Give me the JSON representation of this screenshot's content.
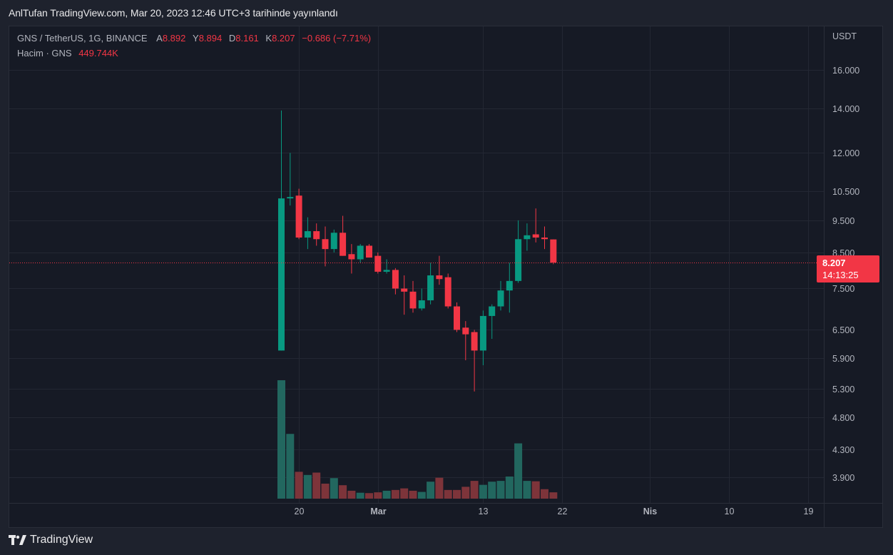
{
  "header": {
    "published_text": "AnlTufan TradingView.com, Mar 20, 2023 12:46 UTC+3 tarihinde yayınlandı"
  },
  "legend": {
    "symbol": "GNS / TetherUS, 1G, BINANCE",
    "open_label": "A",
    "open": "8.892",
    "high_label": "Y",
    "high": "8.894",
    "low_label": "D",
    "low": "8.161",
    "close_label": "K",
    "close": "8.207",
    "change": "−0.686 (−7.71%)",
    "volume_label": "Hacim · GNS",
    "volume": "449.744K"
  },
  "price_tag": {
    "price": "8.207",
    "countdown": "14:13:25"
  },
  "brand": {
    "name": "TradingView"
  },
  "colors": {
    "up": "#089981",
    "down": "#f23645",
    "volume_up": "#22675f",
    "volume_down": "#7d343a",
    "background": "#161a25",
    "grid": "#232733"
  },
  "chart_data": {
    "type": "candlestick",
    "y_axis": {
      "currency": "USDT",
      "scale": "log",
      "ticks": [
        16.0,
        14.0,
        12.0,
        10.5,
        9.5,
        8.5,
        7.5,
        6.5,
        5.9,
        5.3,
        4.8,
        4.3,
        3.9
      ],
      "tick_labels": [
        "16.000",
        "14.000",
        "12.000",
        "10.500",
        "9.500",
        "8.500",
        "7.500",
        "6.500",
        "5.900",
        "5.300",
        "4.800",
        "4.300",
        "3.900"
      ]
    },
    "x_axis": {
      "start_date": "2023-02-18",
      "end_date": "2023-04-19",
      "ticks": [
        {
          "date": "2023-02-20",
          "label": "20"
        },
        {
          "date": "2023-03-01",
          "label": "Mar"
        },
        {
          "date": "2023-03-13",
          "label": "13"
        },
        {
          "date": "2023-03-22",
          "label": "22"
        },
        {
          "date": "2023-04-01",
          "label": "Nis"
        },
        {
          "date": "2023-04-10",
          "label": "10"
        },
        {
          "date": "2023-04-19",
          "label": "19"
        }
      ]
    },
    "last_price": 8.207,
    "volume_max": 1500,
    "candles": [
      {
        "date": "2023-02-18",
        "open": 6.05,
        "high": 13.9,
        "low": 6.05,
        "close": 10.25,
        "volume": 1500
      },
      {
        "date": "2023-02-19",
        "open": 10.25,
        "high": 12.0,
        "low": 10.0,
        "close": 10.3,
        "volume": 820
      },
      {
        "date": "2023-02-20",
        "open": 10.35,
        "high": 10.6,
        "low": 8.9,
        "close": 8.95,
        "volume": 340
      },
      {
        "date": "2023-02-21",
        "open": 8.95,
        "high": 9.6,
        "low": 8.6,
        "close": 9.15,
        "volume": 300
      },
      {
        "date": "2023-02-22",
        "open": 9.15,
        "high": 9.4,
        "low": 8.7,
        "close": 8.9,
        "volume": 330
      },
      {
        "date": "2023-02-23",
        "open": 8.9,
        "high": 9.3,
        "low": 8.1,
        "close": 8.6,
        "volume": 190
      },
      {
        "date": "2023-02-24",
        "open": 8.6,
        "high": 9.2,
        "low": 8.5,
        "close": 9.1,
        "volume": 260
      },
      {
        "date": "2023-02-25",
        "open": 9.1,
        "high": 9.65,
        "low": 8.4,
        "close": 8.4,
        "volume": 170
      },
      {
        "date": "2023-02-26",
        "open": 8.45,
        "high": 8.75,
        "low": 7.9,
        "close": 8.3,
        "volume": 100
      },
      {
        "date": "2023-02-27",
        "open": 8.3,
        "high": 8.75,
        "low": 8.2,
        "close": 8.7,
        "volume": 75
      },
      {
        "date": "2023-02-28",
        "open": 8.7,
        "high": 8.75,
        "low": 8.35,
        "close": 8.35,
        "volume": 70
      },
      {
        "date": "2023-03-01",
        "open": 8.4,
        "high": 8.5,
        "low": 7.9,
        "close": 7.95,
        "volume": 80
      },
      {
        "date": "2023-03-02",
        "open": 7.95,
        "high": 8.3,
        "low": 7.9,
        "close": 8.0,
        "volume": 100
      },
      {
        "date": "2023-03-03",
        "open": 8.0,
        "high": 8.05,
        "low": 7.35,
        "close": 7.5,
        "volume": 110
      },
      {
        "date": "2023-03-04",
        "open": 7.5,
        "high": 7.85,
        "low": 6.85,
        "close": 7.42,
        "volume": 130
      },
      {
        "date": "2023-03-05",
        "open": 7.42,
        "high": 7.7,
        "low": 6.9,
        "close": 7.0,
        "volume": 100
      },
      {
        "date": "2023-03-06",
        "open": 7.0,
        "high": 7.5,
        "low": 6.95,
        "close": 7.2,
        "volume": 85
      },
      {
        "date": "2023-03-07",
        "open": 7.2,
        "high": 8.2,
        "low": 7.1,
        "close": 7.85,
        "volume": 215
      },
      {
        "date": "2023-03-08",
        "open": 7.85,
        "high": 8.4,
        "low": 7.6,
        "close": 7.75,
        "volume": 265
      },
      {
        "date": "2023-03-09",
        "open": 7.8,
        "high": 7.9,
        "low": 7.0,
        "close": 7.05,
        "volume": 110
      },
      {
        "date": "2023-03-10",
        "open": 7.05,
        "high": 7.15,
        "low": 6.45,
        "close": 6.5,
        "volume": 110
      },
      {
        "date": "2023-03-11",
        "open": 6.55,
        "high": 6.7,
        "low": 5.85,
        "close": 6.4,
        "volume": 150
      },
      {
        "date": "2023-03-12",
        "open": 6.45,
        "high": 6.5,
        "low": 5.25,
        "close": 6.05,
        "volume": 225
      },
      {
        "date": "2023-03-13",
        "open": 6.05,
        "high": 6.95,
        "low": 5.75,
        "close": 6.82,
        "volume": 175
      },
      {
        "date": "2023-03-14",
        "open": 6.82,
        "high": 7.1,
        "low": 6.3,
        "close": 7.05,
        "volume": 215
      },
      {
        "date": "2023-03-15",
        "open": 7.05,
        "high": 7.7,
        "low": 6.95,
        "close": 7.45,
        "volume": 225
      },
      {
        "date": "2023-03-16",
        "open": 7.45,
        "high": 8.2,
        "low": 6.9,
        "close": 7.7,
        "volume": 280
      },
      {
        "date": "2023-03-17",
        "open": 7.7,
        "high": 9.5,
        "low": 7.65,
        "close": 8.9,
        "volume": 700
      },
      {
        "date": "2023-03-18",
        "open": 8.9,
        "high": 9.4,
        "low": 8.55,
        "close": 9.02,
        "volume": 225
      },
      {
        "date": "2023-03-19",
        "open": 9.05,
        "high": 9.9,
        "low": 8.8,
        "close": 8.95,
        "volume": 220
      },
      {
        "date": "2023-03-20",
        "open": 8.95,
        "high": 9.3,
        "low": 8.6,
        "close": 8.9,
        "volume": 120
      },
      {
        "date": "2023-03-21",
        "open": 8.892,
        "high": 8.894,
        "low": 8.161,
        "close": 8.207,
        "volume": 80
      }
    ]
  }
}
